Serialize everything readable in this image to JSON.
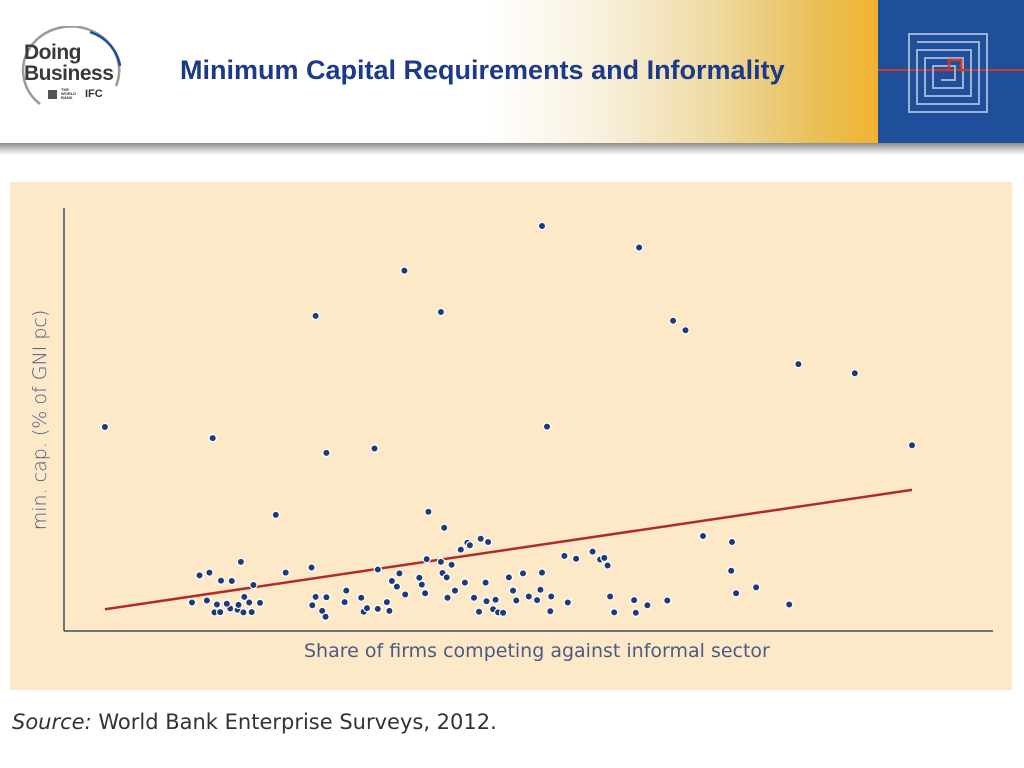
{
  "header": {
    "logo_line1": "Doing",
    "logo_line2": "Business",
    "logo_worldbank": "THE WORLD BANK",
    "logo_ifc": "IFC",
    "title": "Minimum Capital Requirements and Informality"
  },
  "colors": {
    "title": "#1c3a8a",
    "chart_bg": "#fde9c7",
    "point": "#1f3a7a",
    "trend": "#b22a2a",
    "axis": "#3d4a6e"
  },
  "source": {
    "label": "Source:",
    "text": "World Bank Enterprise Surveys, 2012."
  },
  "chart_data": {
    "type": "scatter",
    "title": "",
    "xlabel": "Share of firms competing against informal sector",
    "ylabel": "min. cap. (% of GNI pc)",
    "xlim": [
      0,
      100
    ],
    "ylim": [
      0,
      100
    ],
    "grid": false,
    "tick_labels": "none",
    "series": [
      {
        "name": "countries",
        "points": [
          [
            2.4,
            49
          ],
          [
            15.4,
            46.2
          ],
          [
            29.1,
            42.5
          ],
          [
            34.9,
            43.6
          ],
          [
            27.8,
            76.9
          ],
          [
            38.5,
            88.3
          ],
          [
            42.9,
            77.9
          ],
          [
            55.1,
            99.5
          ],
          [
            66.8,
            94.1
          ],
          [
            70.9,
            75.7
          ],
          [
            72.4,
            73.3
          ],
          [
            86.0,
            64.8
          ],
          [
            92.8,
            62.5
          ],
          [
            99.7,
            44.4
          ],
          [
            55.7,
            49.1
          ],
          [
            41.4,
            27.7
          ],
          [
            23.0,
            26.9
          ],
          [
            35.3,
            13.2
          ],
          [
            41.2,
            15.8
          ],
          [
            40.6,
            9.4
          ],
          [
            20.3,
            9.3
          ],
          [
            19.2,
            6.3
          ],
          [
            18.8,
            15.1
          ],
          [
            17.7,
            10.3
          ],
          [
            16.4,
            10.4
          ],
          [
            15.0,
            12.4
          ],
          [
            13.8,
            11.7
          ],
          [
            14.7,
            5.4
          ],
          [
            12.9,
            4.9
          ],
          [
            15.6,
            2.4
          ],
          [
            16.3,
            2.5
          ],
          [
            17.5,
            3.4
          ],
          [
            18.4,
            3.1
          ],
          [
            19.1,
            2.4
          ],
          [
            20.1,
            2.5
          ],
          [
            15.9,
            4.4
          ],
          [
            17.1,
            4.6
          ],
          [
            18.5,
            4.3
          ],
          [
            19.8,
            4.9
          ],
          [
            21.1,
            4.8
          ],
          [
            24.2,
            12.4
          ],
          [
            27.3,
            13.7
          ],
          [
            27.8,
            6.3
          ],
          [
            27.4,
            4.2
          ],
          [
            29.1,
            6.2
          ],
          [
            28.6,
            2.8
          ],
          [
            29.0,
            1.3
          ],
          [
            31.3,
            5.0
          ],
          [
            31.5,
            7.9
          ],
          [
            33.3,
            6.1
          ],
          [
            33.6,
            2.6
          ],
          [
            34.0,
            3.5
          ],
          [
            35.3,
            3.3
          ],
          [
            36.4,
            5.0
          ],
          [
            36.7,
            2.8
          ],
          [
            37.0,
            10.3
          ],
          [
            37.9,
            12.2
          ],
          [
            38.6,
            6.9
          ],
          [
            37.6,
            8.9
          ],
          [
            40.3,
            11.1
          ],
          [
            41.0,
            7.2
          ],
          [
            43.3,
            23.7
          ],
          [
            45.8,
            9.9
          ],
          [
            44.6,
            7.9
          ],
          [
            43.7,
            6.1
          ],
          [
            43.1,
            12.3
          ],
          [
            43.6,
            11.2
          ],
          [
            44.2,
            14.4
          ],
          [
            42.9,
            15.1
          ],
          [
            45.3,
            18.2
          ],
          [
            46.1,
            19.9
          ],
          [
            47.7,
            20.9
          ],
          [
            46.4,
            19.3
          ],
          [
            48.3,
            9.9
          ],
          [
            48.6,
            20.1
          ],
          [
            46.9,
            6.1
          ],
          [
            47.5,
            2.6
          ],
          [
            48.4,
            5.2
          ],
          [
            49.2,
            3.2
          ],
          [
            49.8,
            2.4
          ],
          [
            50.4,
            2.3
          ],
          [
            49.5,
            5.6
          ],
          [
            51.1,
            11.2
          ],
          [
            51.6,
            7.9
          ],
          [
            52.0,
            5.4
          ],
          [
            52.8,
            12.2
          ],
          [
            53.5,
            6.4
          ],
          [
            54.5,
            5.5
          ],
          [
            54.9,
            8.1
          ],
          [
            55.1,
            12.4
          ],
          [
            56.2,
            6.4
          ],
          [
            56.1,
            2.7
          ],
          [
            57.8,
            16.6
          ],
          [
            58.2,
            4.9
          ],
          [
            59.2,
            15.9
          ],
          [
            61.2,
            17.7
          ],
          [
            62.1,
            15.7
          ],
          [
            62.6,
            16.1
          ],
          [
            63.0,
            14.2
          ],
          [
            63.3,
            6.4
          ],
          [
            63.8,
            2.4
          ],
          [
            66.2,
            5.5
          ],
          [
            66.4,
            2.3
          ],
          [
            67.8,
            4.2
          ],
          [
            70.2,
            5.4
          ],
          [
            74.5,
            21.6
          ],
          [
            77.9,
            12.9
          ],
          [
            78.5,
            7.2
          ],
          [
            80.9,
            8.7
          ],
          [
            78.0,
            20.1
          ],
          [
            84.9,
            4.4
          ]
        ]
      }
    ],
    "trendline": {
      "x": [
        2.4,
        99.7
      ],
      "y": [
        3.2,
        33.2
      ]
    }
  }
}
